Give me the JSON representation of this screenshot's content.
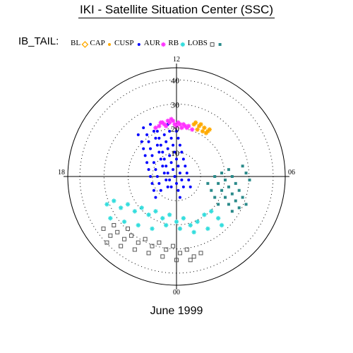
{
  "title": "IKI - Satellite Situation Center (SSC)",
  "footer": "June 1999",
  "chart_data": {
    "type": "scatter",
    "coordinate_system": "polar (magnetic local time vs. invariant latitude)",
    "subtitle": "IB_TAIL:",
    "clock_labels": {
      "top": "12",
      "bottom": "00",
      "left": "18",
      "right": "06"
    },
    "radial_ticks": [
      "10",
      "20",
      "30",
      "40"
    ],
    "legend": [
      {
        "name": "BL",
        "marker": "open-diamond",
        "color": "#ffaa00"
      },
      {
        "name": "CAP",
        "marker": "filled-dot",
        "color": "#ffaa00"
      },
      {
        "name": "CUSP",
        "marker": "filled-dot",
        "color": "#0000ff"
      },
      {
        "name": "AUR",
        "marker": "star",
        "color": "#ff33ff"
      },
      {
        "name": "RB",
        "marker": "star",
        "color": "#33dddd"
      },
      {
        "name": "LOBS",
        "marker": "open-square",
        "color": "#555555"
      },
      {
        "name": "",
        "marker": "filled-square",
        "color": "#2a8a8a"
      }
    ],
    "r_range": [
      0,
      45
    ],
    "grid": "dotted circles",
    "series": [
      {
        "name": "CUSP",
        "color": "#0000ff",
        "points": [
          [
            -11,
            26
          ],
          [
            -10,
            22
          ],
          [
            -9,
            18
          ],
          [
            -8,
            14
          ],
          [
            -7,
            10
          ],
          [
            -6,
            6
          ],
          [
            -5,
            2
          ],
          [
            -4,
            -2
          ],
          [
            -3,
            -6
          ],
          [
            -15,
            30
          ],
          [
            -13,
            26
          ],
          [
            -12,
            22
          ],
          [
            -11,
            18
          ],
          [
            -10,
            14
          ],
          [
            -9,
            10
          ],
          [
            -8,
            6
          ],
          [
            -7,
            2
          ],
          [
            -6,
            -2
          ],
          [
            -5,
            -6
          ],
          [
            -19,
            28
          ],
          [
            -17,
            24
          ],
          [
            -16,
            20
          ],
          [
            -15,
            16
          ],
          [
            -14,
            12
          ],
          [
            -13,
            8
          ],
          [
            -12,
            4
          ],
          [
            -11,
            0
          ],
          [
            -10,
            -4
          ],
          [
            -9,
            -8
          ],
          [
            -5,
            30
          ],
          [
            -4,
            26
          ],
          [
            -3,
            22
          ],
          [
            -2,
            18
          ],
          [
            -1,
            14
          ],
          [
            0,
            10
          ],
          [
            1,
            6
          ],
          [
            2,
            2
          ],
          [
            3,
            -2
          ],
          [
            4,
            -6
          ],
          [
            -1,
            30
          ],
          [
            0,
            26
          ],
          [
            1,
            22
          ],
          [
            2,
            18
          ],
          [
            3,
            14
          ],
          [
            4,
            10
          ],
          [
            5,
            6
          ],
          [
            6,
            2
          ],
          [
            7,
            -2
          ],
          [
            8,
            -6
          ],
          [
            -7,
            24
          ],
          [
            -6,
            20
          ],
          [
            -5,
            16
          ],
          [
            -4,
            12
          ],
          [
            -3,
            8
          ],
          [
            -2,
            4
          ],
          [
            -1,
            0
          ],
          [
            0,
            -4
          ],
          [
            1,
            -8
          ],
          [
            2,
            -12
          ],
          [
            -22,
            24
          ],
          [
            -20,
            20
          ],
          [
            -19,
            16
          ],
          [
            -18,
            12
          ],
          [
            -17,
            8
          ],
          [
            -16,
            4
          ],
          [
            -15,
            0
          ],
          [
            -14,
            -4
          ],
          [
            -13,
            -8
          ],
          [
            -12,
            -12
          ]
        ]
      },
      {
        "name": "AUR",
        "color": "#ff33ff",
        "points": [
          [
            -8,
            31
          ],
          [
            -5,
            32
          ],
          [
            -2,
            32
          ],
          [
            1,
            31
          ],
          [
            4,
            30
          ],
          [
            7,
            29
          ],
          [
            -10,
            29
          ],
          [
            -7,
            30
          ],
          [
            -4,
            31
          ],
          [
            -1,
            30
          ],
          [
            2,
            30
          ],
          [
            5,
            29
          ],
          [
            -12,
            28
          ],
          [
            -6,
            29
          ],
          [
            0,
            29
          ],
          [
            3,
            28
          ],
          [
            6,
            28
          ],
          [
            9,
            27
          ],
          [
            -9,
            31
          ],
          [
            -3,
            33
          ]
        ]
      },
      {
        "name": "BL",
        "color": "#ffaa00",
        "points": [
          [
            10,
            30
          ],
          [
            13,
            29
          ],
          [
            16,
            28
          ],
          [
            18,
            26
          ],
          [
            12,
            27
          ],
          [
            15,
            26
          ],
          [
            17,
            25
          ],
          [
            11,
            31
          ],
          [
            14,
            30
          ],
          [
            19,
            27
          ]
        ]
      },
      {
        "name": "RB",
        "color": "#33dddd",
        "points": [
          [
            -40,
            -16
          ],
          [
            -36,
            -14
          ],
          [
            -32,
            -18
          ],
          [
            -28,
            -16
          ],
          [
            -24,
            -20
          ],
          [
            -20,
            -18
          ],
          [
            -16,
            -22
          ],
          [
            -12,
            -20
          ],
          [
            -8,
            -24
          ],
          [
            -4,
            -22
          ],
          [
            0,
            -26
          ],
          [
            4,
            -24
          ],
          [
            8,
            -28
          ],
          [
            12,
            -26
          ],
          [
            16,
            -22
          ],
          [
            20,
            -20
          ],
          [
            24,
            -24
          ],
          [
            -38,
            -24
          ],
          [
            -30,
            -26
          ],
          [
            -22,
            -28
          ],
          [
            -14,
            -30
          ],
          [
            -6,
            -28
          ],
          [
            2,
            -30
          ],
          [
            10,
            -32
          ],
          [
            18,
            -30
          ],
          [
            26,
            -28
          ]
        ]
      },
      {
        "name": "LOBS",
        "color": "#555555",
        "points": [
          [
            -42,
            -30
          ],
          [
            -38,
            -34
          ],
          [
            -34,
            -32
          ],
          [
            -30,
            -36
          ],
          [
            -26,
            -34
          ],
          [
            -22,
            -38
          ],
          [
            -18,
            -36
          ],
          [
            -14,
            -40
          ],
          [
            -10,
            -38
          ],
          [
            -6,
            -42
          ],
          [
            -2,
            -40
          ],
          [
            2,
            -44
          ],
          [
            6,
            -42
          ],
          [
            10,
            -46
          ],
          [
            -40,
            -38
          ],
          [
            -32,
            -40
          ],
          [
            -24,
            -42
          ],
          [
            -16,
            -44
          ],
          [
            -8,
            -46
          ],
          [
            0,
            -48
          ],
          [
            8,
            -48
          ],
          [
            14,
            -44
          ],
          [
            -36,
            -28
          ],
          [
            -28,
            -30
          ]
        ]
      },
      {
        "name": "",
        "color": "#2a8a8a",
        "points": [
          [
            30,
            4
          ],
          [
            32,
            0
          ],
          [
            34,
            -4
          ],
          [
            36,
            -8
          ],
          [
            38,
            -12
          ],
          [
            40,
            -16
          ],
          [
            26,
            2
          ],
          [
            28,
            -2
          ],
          [
            30,
            -6
          ],
          [
            32,
            -10
          ],
          [
            34,
            -14
          ],
          [
            36,
            -18
          ],
          [
            22,
            0
          ],
          [
            24,
            -4
          ],
          [
            26,
            -8
          ],
          [
            28,
            -12
          ],
          [
            30,
            -16
          ],
          [
            32,
            -20
          ],
          [
            38,
            6
          ],
          [
            40,
            2
          ],
          [
            42,
            -2
          ],
          [
            18,
            -4
          ],
          [
            20,
            -8
          ],
          [
            22,
            -12
          ],
          [
            24,
            -16
          ]
        ]
      }
    ]
  }
}
